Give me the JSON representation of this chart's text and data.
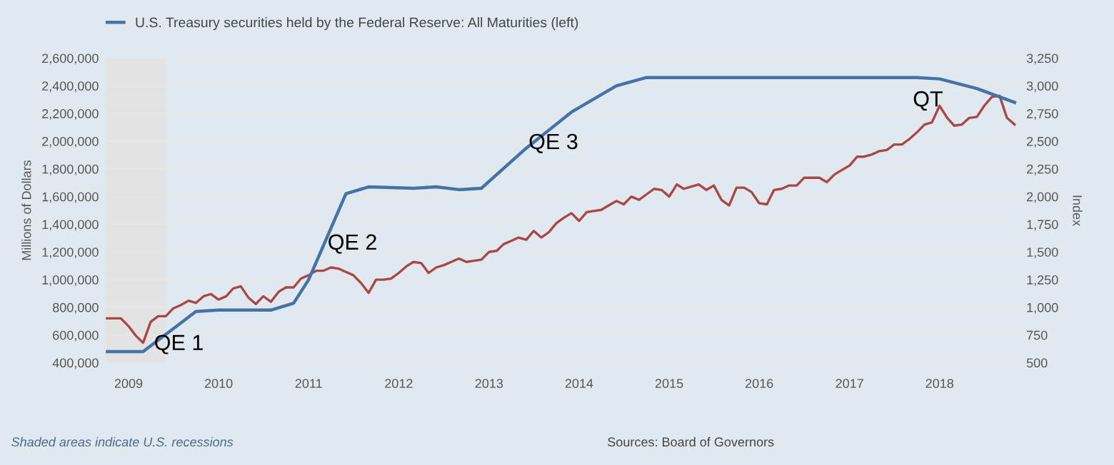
{
  "chart_data": {
    "type": "line",
    "ylabel": "Millions of Dollars",
    "y2label": "Index",
    "xlim": [
      "2008-10-01",
      "2018-11-20"
    ],
    "xticks": [
      "2009",
      "2010",
      "2011",
      "2012",
      "2013",
      "2014",
      "2015",
      "2016",
      "2017",
      "2018"
    ],
    "ylim": [
      400000,
      2600000
    ],
    "yticks": [
      {
        "value": 400000,
        "label": "400,000"
      },
      {
        "value": 600000,
        "label": "600,000"
      },
      {
        "value": 800000,
        "label": "800,000"
      },
      {
        "value": 1000000,
        "label": "1,000,000"
      },
      {
        "value": 1200000,
        "label": "1,200,000"
      },
      {
        "value": 1400000,
        "label": "1,400,000"
      },
      {
        "value": 1600000,
        "label": "1,600,000"
      },
      {
        "value": 1800000,
        "label": "1,800,000"
      },
      {
        "value": 2000000,
        "label": "2,000,000"
      },
      {
        "value": 2200000,
        "label": "2,200,000"
      },
      {
        "value": 2400000,
        "label": "2,400,000"
      },
      {
        "value": 2600000,
        "label": "2,600,000"
      }
    ],
    "y2lim": [
      500,
      3250
    ],
    "y2ticks": [
      500,
      750,
      {
        "value": 1000,
        "label": "1,000"
      },
      {
        "value": 1250,
        "label": "1,250"
      },
      {
        "value": 1500,
        "label": "1,500"
      },
      {
        "value": 1750,
        "label": "1,750"
      },
      {
        "value": 2000,
        "label": "2,000"
      },
      {
        "value": 2250,
        "label": "2,250"
      },
      {
        "value": 2500,
        "label": "2,500"
      },
      {
        "value": 2750,
        "label": "2,750"
      },
      {
        "value": 3000,
        "label": "3,000"
      },
      {
        "value": 3250,
        "label": "3,250"
      }
    ],
    "grid": "y",
    "legend": "top left",
    "bands": [
      {
        "axis": "x",
        "from": "2008-10-01",
        "to": "2009-06-01",
        "color": "#e3e3e3"
      }
    ],
    "annotations": [
      "QE 1",
      "QE 2",
      "QE 3",
      "QT",
      "Shaded areas indicate U.S. recessions",
      "Sources: Board of Governors"
    ],
    "series": [
      {
        "name": "U.S. Treasury securities held by the Federal Reserve: All Maturities (left)",
        "color": "#4572a7",
        "x": [
          "2008-10",
          "2009-03",
          "2009-10",
          "2010-01",
          "2010-08",
          "2010-11",
          "2011-01",
          "2011-06",
          "2011-09",
          "2012-03",
          "2012-06",
          "2012-09",
          "2012-12",
          "2013-06",
          "2013-12",
          "2014-06",
          "2014-10",
          "2015-06",
          "2016-06",
          "2017-10",
          "2018-01",
          "2018-06",
          "2018-11"
        ],
        "values": [
          480000,
          480000,
          770000,
          780000,
          780000,
          830000,
          1000000,
          1620000,
          1670000,
          1660000,
          1670000,
          1650000,
          1660000,
          1950000,
          2210000,
          2400000,
          2460000,
          2460000,
          2460000,
          2460000,
          2450000,
          2380000,
          2280000
        ]
      },
      {
        "color": "#aa4643",
        "axis": "y2",
        "x": [
          "2008-10",
          "2008-11",
          "2008-12",
          "2009-01",
          "2009-02",
          "2009-03",
          "2009-04",
          "2009-05",
          "2009-06",
          "2009-07",
          "2009-08",
          "2009-09",
          "2009-10",
          "2009-11",
          "2009-12",
          "2010-01",
          "2010-02",
          "2010-03",
          "2010-04",
          "2010-05",
          "2010-06",
          "2010-07",
          "2010-08",
          "2010-09",
          "2010-10",
          "2010-11",
          "2010-12",
          "2011-01",
          "2011-02",
          "2011-03",
          "2011-04",
          "2011-05",
          "2011-06",
          "2011-07",
          "2011-08",
          "2011-09",
          "2011-10",
          "2011-11",
          "2011-12",
          "2012-01",
          "2012-02",
          "2012-03",
          "2012-04",
          "2012-05",
          "2012-06",
          "2012-07",
          "2012-08",
          "2012-09",
          "2012-10",
          "2012-11",
          "2012-12",
          "2013-01",
          "2013-02",
          "2013-03",
          "2013-04",
          "2013-05",
          "2013-06",
          "2013-07",
          "2013-08",
          "2013-09",
          "2013-10",
          "2013-11",
          "2013-12",
          "2014-01",
          "2014-02",
          "2014-03",
          "2014-04",
          "2014-05",
          "2014-06",
          "2014-07",
          "2014-08",
          "2014-09",
          "2014-10",
          "2014-11",
          "2014-12",
          "2015-01",
          "2015-02",
          "2015-03",
          "2015-04",
          "2015-05",
          "2015-06",
          "2015-07",
          "2015-08",
          "2015-09",
          "2015-10",
          "2015-11",
          "2015-12",
          "2016-01",
          "2016-02",
          "2016-03",
          "2016-04",
          "2016-05",
          "2016-06",
          "2016-07",
          "2016-08",
          "2016-09",
          "2016-10",
          "2016-11",
          "2016-12",
          "2017-01",
          "2017-02",
          "2017-03",
          "2017-04",
          "2017-05",
          "2017-06",
          "2017-07",
          "2017-08",
          "2017-09",
          "2017-10",
          "2017-11",
          "2017-12",
          "2018-01",
          "2018-02",
          "2018-03",
          "2018-04",
          "2018-05",
          "2018-06",
          "2018-07",
          "2018-08",
          "2018-09",
          "2018-10",
          "2018-11"
        ],
        "values": [
          900,
          900,
          900,
          830,
          740,
          680,
          870,
          920,
          920,
          990,
          1020,
          1060,
          1040,
          1100,
          1120,
          1070,
          1100,
          1170,
          1190,
          1090,
          1030,
          1100,
          1050,
          1140,
          1180,
          1180,
          1260,
          1290,
          1330,
          1330,
          1360,
          1350,
          1320,
          1290,
          1220,
          1130,
          1250,
          1250,
          1260,
          1310,
          1370,
          1410,
          1400,
          1310,
          1360,
          1380,
          1410,
          1440,
          1410,
          1420,
          1430,
          1500,
          1510,
          1570,
          1600,
          1630,
          1610,
          1690,
          1630,
          1680,
          1760,
          1810,
          1850,
          1780,
          1860,
          1870,
          1880,
          1920,
          1960,
          1930,
          2000,
          1970,
          2020,
          2070,
          2060,
          2000,
          2110,
          2070,
          2090,
          2110,
          2060,
          2100,
          1970,
          1920,
          2080,
          2080,
          2040,
          1940,
          1930,
          2060,
          2070,
          2100,
          2100,
          2170,
          2170,
          2170,
          2130,
          2200,
          2240,
          2280,
          2360,
          2360,
          2380,
          2410,
          2420,
          2470,
          2470,
          2520,
          2580,
          2650,
          2670,
          2820,
          2710,
          2640,
          2650,
          2710,
          2720,
          2820,
          2900,
          2910,
          2710,
          2650
        ]
      }
    ]
  }
}
